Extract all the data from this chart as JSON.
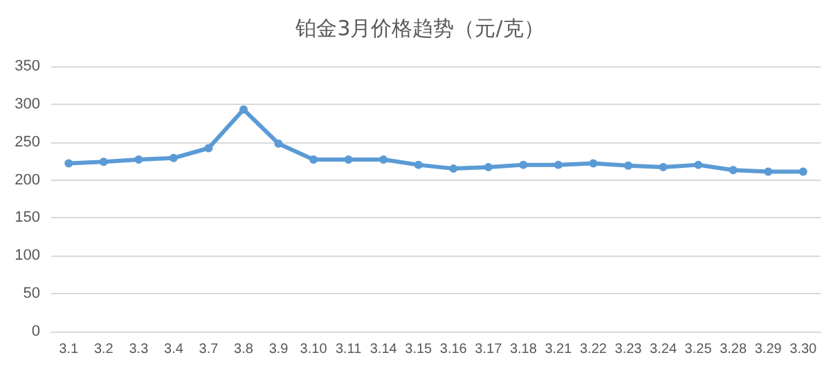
{
  "chart_data": {
    "type": "line",
    "title": "铂金3月价格趋势（元/克）",
    "categories": [
      "3.1",
      "3.2",
      "3.3",
      "3.4",
      "3.7",
      "3.8",
      "3.9",
      "3.10",
      "3.11",
      "3.14",
      "3.15",
      "3.16",
      "3.17",
      "3.18",
      "3.21",
      "3.22",
      "3.23",
      "3.24",
      "3.25",
      "3.28",
      "3.29",
      "3.30"
    ],
    "series": [
      {
        "color": "#5b9bd5",
        "values": [
          222,
          224,
          227,
          229,
          242,
          293,
          248,
          227,
          227,
          227,
          220,
          215,
          217,
          220,
          220,
          222,
          219,
          217,
          220,
          213,
          211,
          211
        ]
      }
    ],
    "ylim": [
      0,
      350
    ],
    "yticks": [
      0,
      50,
      100,
      150,
      200,
      250,
      300,
      350
    ],
    "grid": "y",
    "marker": "circle",
    "line_style": "solid"
  }
}
